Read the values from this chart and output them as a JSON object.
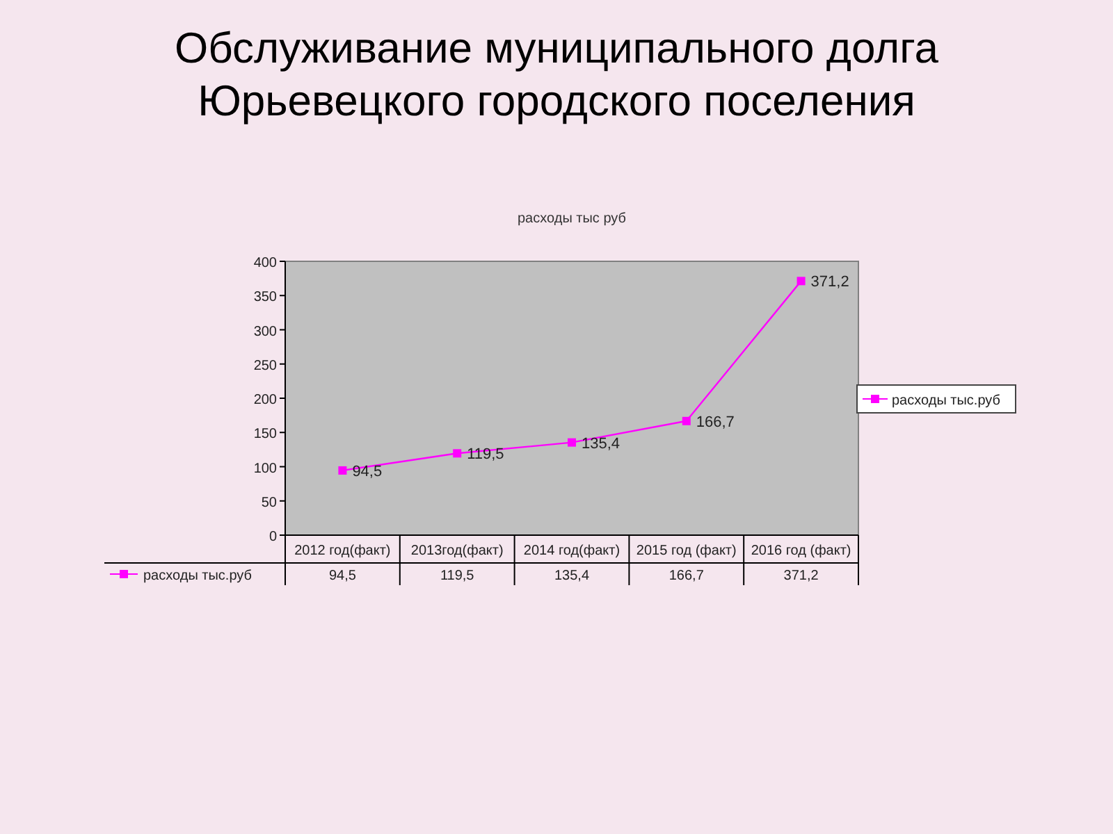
{
  "chart_data": {
    "type": "line",
    "title": "Обслуживание муниципального долга Юрьевецкого городского поселения",
    "subtitle": "расходы тыс руб",
    "categories": [
      "2012 год(факт)",
      "2013год(факт)",
      "2014 год(факт)",
      "2015 год (факт)",
      "2016 год (факт)"
    ],
    "series": [
      {
        "name": "расходы тыс.руб",
        "color": "#ff00ff",
        "values": [
          94.5,
          119.5,
          135.4,
          166.7,
          371.2
        ],
        "value_labels": [
          "94,5",
          "119,5",
          "135,4",
          "166,7",
          "371,2"
        ]
      }
    ],
    "ylim": [
      0,
      400
    ],
    "yticks": [
      0,
      50,
      100,
      150,
      200,
      250,
      300,
      350,
      400
    ],
    "data_labels": true,
    "legend": "right",
    "marker": "square",
    "grid": false
  }
}
